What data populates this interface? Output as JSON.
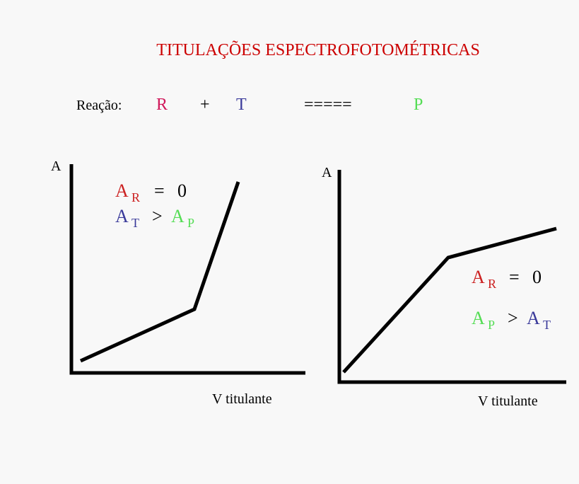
{
  "title": "TITULAÇÕES ESPECTROFOTOMÉTRICAS",
  "reaction": {
    "label": "Reação:",
    "reactant_1": "R",
    "plus": "+",
    "reactant_2": "T",
    "equals": "=====",
    "product": "P"
  },
  "graphs": [
    {
      "y_axis_label": "A",
      "x_axis_label": "V titulante",
      "annotations": [
        [
          "A",
          "R",
          "=",
          "0"
        ],
        [
          "A",
          "T",
          ">",
          "A",
          "P"
        ]
      ]
    },
    {
      "y_axis_label": "A",
      "x_axis_label": "V titulante",
      "annotations": [
        [
          "A",
          "R",
          "=",
          "0"
        ],
        [
          "A",
          "P",
          ">",
          "A",
          "T"
        ]
      ]
    }
  ]
}
